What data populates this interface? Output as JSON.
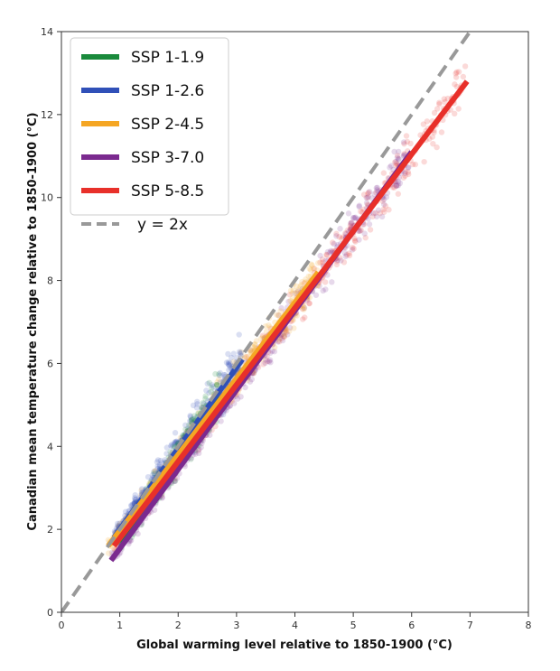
{
  "chart_data": {
    "type": "scatter",
    "xlabel": "Global warming level relative to 1850-1900 (°C)",
    "ylabel": "Canadian mean temperature change relative to 1850-1900 (°C)",
    "xlim": [
      0,
      8
    ],
    "ylim": [
      0,
      14
    ],
    "x_ticks": [
      "0",
      "1",
      "2",
      "3",
      "4",
      "5",
      "6",
      "7",
      "8"
    ],
    "y_ticks": [
      "0",
      "2",
      "4",
      "6",
      "8",
      "10",
      "12",
      "14"
    ],
    "grid": false,
    "legend_position": "top-left",
    "series": [
      {
        "name": "SSP 1-1.9",
        "color": "#1a8a3c",
        "fit_line": [
          [
            1.0,
            1.7
          ],
          [
            2.7,
            5.2
          ]
        ],
        "cloud_x_range": [
          1.0,
          2.8
        ],
        "cloud_y_range": [
          1.5,
          5.5
        ]
      },
      {
        "name": "SSP 1-2.6",
        "color": "#3050b8",
        "fit_line": [
          [
            0.9,
            1.8
          ],
          [
            3.1,
            6.1
          ]
        ],
        "cloud_x_range": [
          0.9,
          3.2
        ],
        "cloud_y_range": [
          1.6,
          6.4
        ]
      },
      {
        "name": "SSP 2-4.5",
        "color": "#f5a623",
        "fit_line": [
          [
            0.8,
            1.6
          ],
          [
            4.4,
            8.2
          ]
        ],
        "cloud_x_range": [
          0.8,
          4.5
        ],
        "cloud_y_range": [
          1.4,
          8.6
        ]
      },
      {
        "name": "SSP 3-7.0",
        "color": "#7b2a8f",
        "fit_line": [
          [
            0.85,
            1.25
          ],
          [
            6.0,
            11.1
          ]
        ],
        "cloud_x_range": [
          0.85,
          6.0
        ],
        "cloud_y_range": [
          1.2,
          11.2
        ]
      },
      {
        "name": "SSP 5-8.5",
        "color": "#e8302a",
        "fit_line": [
          [
            0.9,
            1.6
          ],
          [
            6.95,
            12.8
          ]
        ],
        "cloud_x_range": [
          0.9,
          7.0
        ],
        "cloud_y_range": [
          1.5,
          12.9
        ]
      },
      {
        "name": "y = 2x",
        "color": "#999999",
        "style": "dashed",
        "fit_line": [
          [
            0,
            0
          ],
          [
            7.0,
            14.0
          ]
        ]
      }
    ]
  }
}
